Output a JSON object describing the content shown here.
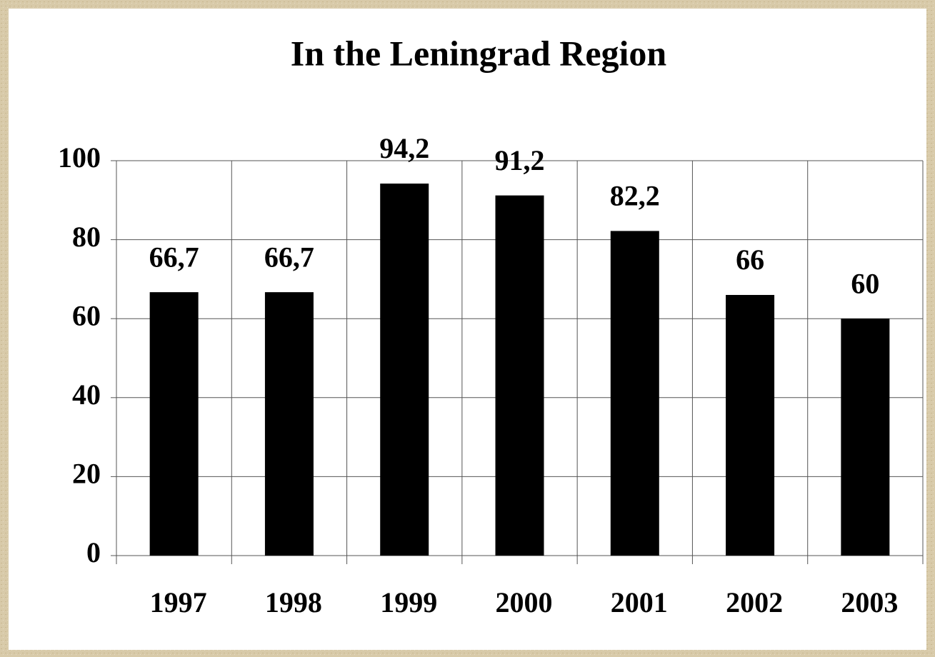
{
  "chart_data": {
    "type": "bar",
    "title": "In the Leningrad Region",
    "categories": [
      "1997",
      "1998",
      "1999",
      "2000",
      "2001",
      "2002",
      "2003"
    ],
    "values": [
      66.7,
      66.7,
      94.2,
      91.2,
      82.2,
      66,
      60
    ],
    "value_labels": [
      "66,7",
      "66,7",
      "94,2",
      "91,2",
      "82,2",
      "66",
      "60"
    ],
    "color": "#000000",
    "ylim": [
      0,
      100
    ],
    "yticks": [
      0,
      20,
      40,
      60,
      80,
      100
    ],
    "grid": true
  }
}
